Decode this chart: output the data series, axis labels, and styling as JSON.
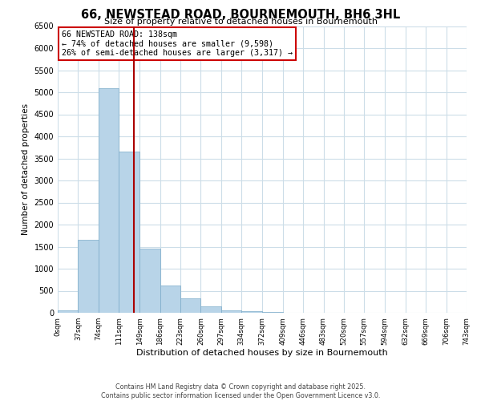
{
  "title": "66, NEWSTEAD ROAD, BOURNEMOUTH, BH6 3HL",
  "subtitle": "Size of property relative to detached houses in Bournemouth",
  "xlabel": "Distribution of detached houses by size in Bournemouth",
  "ylabel": "Number of detached properties",
  "bar_color": "#b8d4e8",
  "bar_edge_color": "#7aaac8",
  "bin_edges": [
    0,
    37,
    74,
    111,
    149,
    186,
    223,
    260,
    297,
    334,
    372,
    409,
    446,
    483,
    520,
    557,
    594,
    632,
    669,
    706,
    743
  ],
  "bar_heights": [
    50,
    1650,
    5100,
    3650,
    1450,
    620,
    330,
    145,
    50,
    30,
    10,
    5,
    0,
    0,
    0,
    0,
    0,
    0,
    0,
    0
  ],
  "tick_labels": [
    "0sqm",
    "37sqm",
    "74sqm",
    "111sqm",
    "149sqm",
    "186sqm",
    "223sqm",
    "260sqm",
    "297sqm",
    "334sqm",
    "372sqm",
    "409sqm",
    "446sqm",
    "483sqm",
    "520sqm",
    "557sqm",
    "594sqm",
    "632sqm",
    "669sqm",
    "706sqm",
    "743sqm"
  ],
  "property_value": 138,
  "property_label": "66 NEWSTEAD ROAD: 138sqm",
  "pct_smaller": 74,
  "count_smaller": 9598,
  "pct_larger": 26,
  "count_larger": 3317,
  "vline_color": "#aa0000",
  "annotation_box_edge_color": "#cc0000",
  "ylim": [
    0,
    6500
  ],
  "yticks": [
    0,
    500,
    1000,
    1500,
    2000,
    2500,
    3000,
    3500,
    4000,
    4500,
    5000,
    5500,
    6000,
    6500
  ],
  "footer_line1": "Contains HM Land Registry data © Crown copyright and database right 2025.",
  "footer_line2": "Contains public sector information licensed under the Open Government Licence v3.0.",
  "bg_color": "#ffffff",
  "grid_color": "#ccdde8"
}
